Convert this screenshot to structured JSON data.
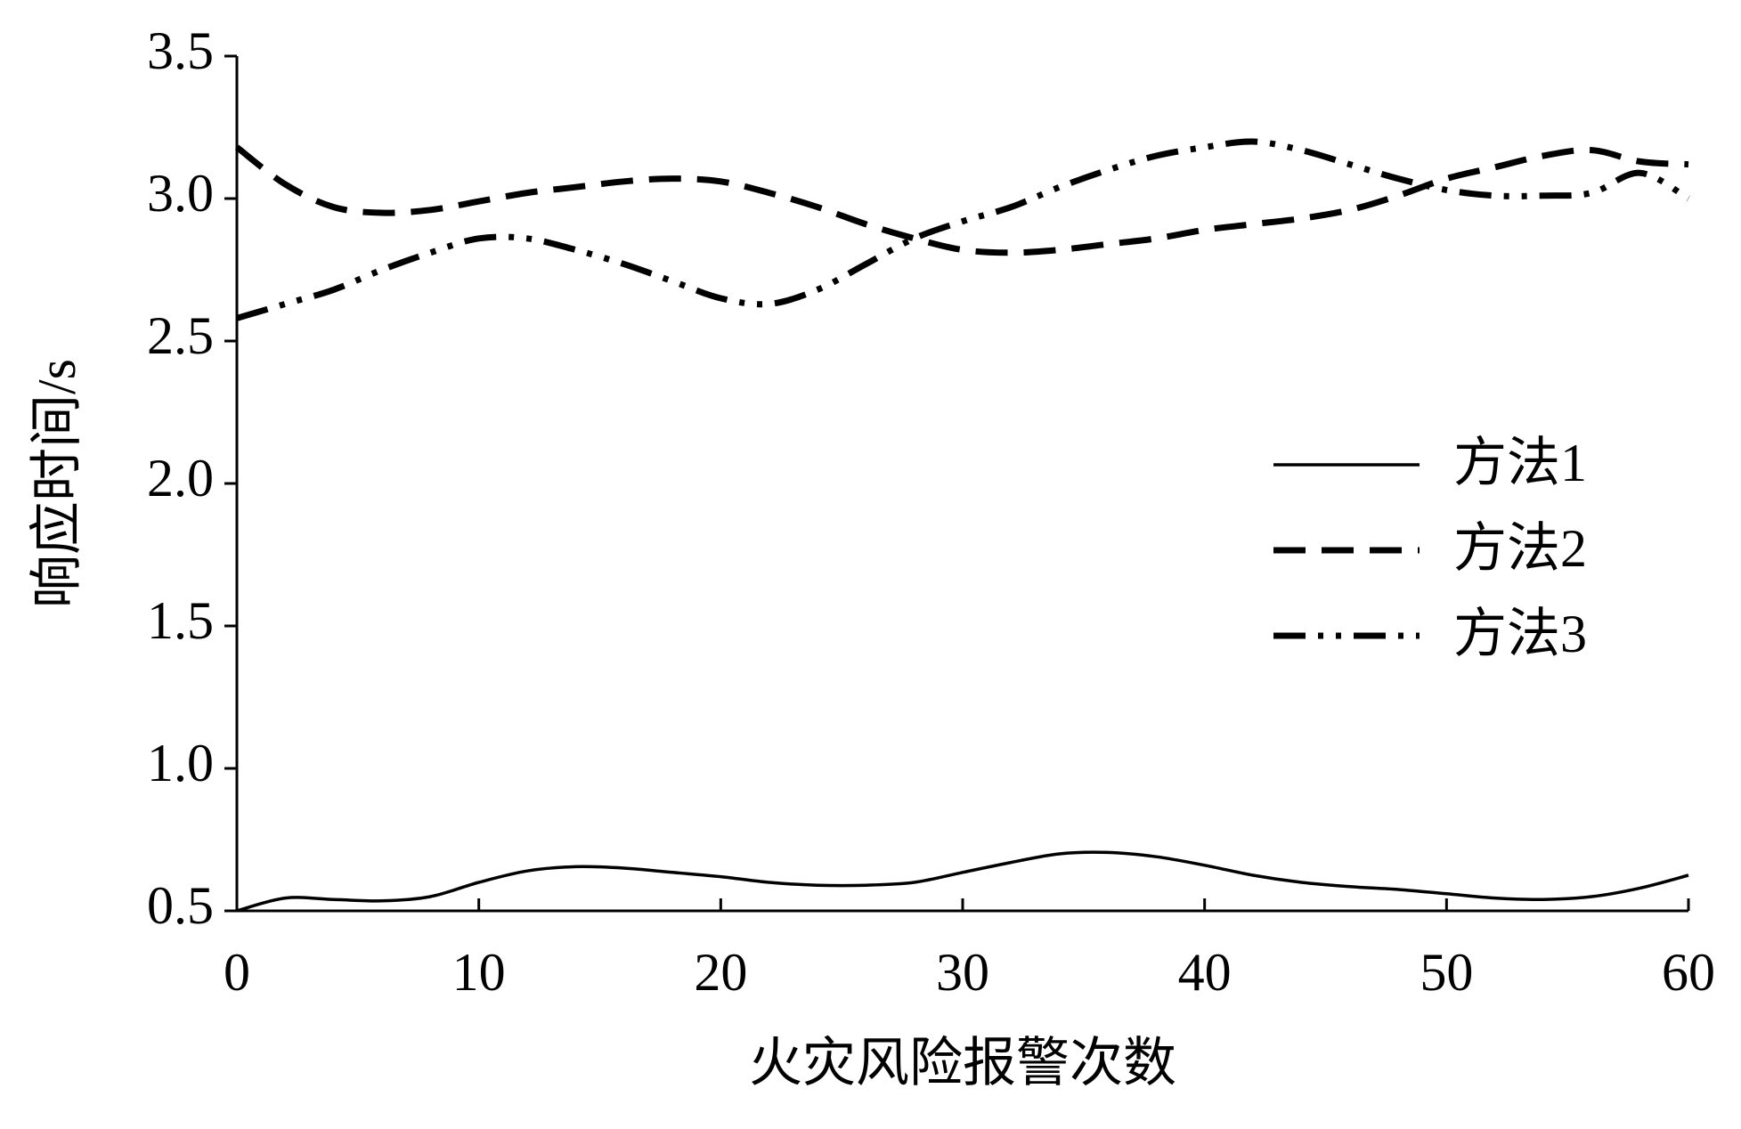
{
  "chart_data": {
    "type": "line",
    "x_label": "火灾风险报警次数",
    "y_label": "响应时间/s",
    "x": [
      0,
      2,
      4,
      6,
      8,
      10,
      12,
      14,
      16,
      18,
      20,
      22,
      24,
      26,
      28,
      30,
      32,
      34,
      36,
      38,
      40,
      42,
      44,
      46,
      48,
      50,
      52,
      54,
      56,
      58,
      60
    ],
    "series": [
      {
        "name": "方法1",
        "color": "#000000",
        "dash": "solid",
        "values": [
          0.5,
          0.545,
          0.54,
          0.535,
          0.55,
          0.6,
          0.64,
          0.655,
          0.65,
          0.635,
          0.62,
          0.6,
          0.59,
          0.59,
          0.6,
          0.635,
          0.67,
          0.7,
          0.705,
          0.69,
          0.66,
          0.625,
          0.6,
          0.585,
          0.575,
          0.56,
          0.545,
          0.54,
          0.55,
          0.58,
          0.625
        ]
      },
      {
        "name": "方法2",
        "color": "#000000",
        "dash": "dashed",
        "values": [
          3.18,
          3.05,
          2.97,
          2.95,
          2.96,
          2.99,
          3.02,
          3.04,
          3.06,
          3.07,
          3.06,
          3.02,
          2.97,
          2.91,
          2.86,
          2.82,
          2.81,
          2.82,
          2.84,
          2.86,
          2.89,
          2.91,
          2.93,
          2.96,
          3.01,
          3.07,
          3.11,
          3.15,
          3.17,
          3.13,
          3.12
        ]
      },
      {
        "name": "方法3",
        "color": "#000000",
        "dash": "dash-dot-dot",
        "values": [
          2.58,
          2.63,
          2.68,
          2.75,
          2.81,
          2.86,
          2.86,
          2.82,
          2.77,
          2.71,
          2.65,
          2.63,
          2.68,
          2.77,
          2.86,
          2.92,
          2.97,
          3.04,
          3.1,
          3.15,
          3.18,
          3.2,
          3.17,
          3.12,
          3.07,
          3.03,
          3.01,
          3.01,
          3.02,
          3.09,
          3.0
        ]
      }
    ],
    "xlim": [
      0,
      60
    ],
    "xticks": [
      0,
      10,
      20,
      30,
      40,
      50,
      60
    ],
    "ylim": [
      0.5,
      3.5
    ],
    "yticks": [
      0.5,
      {
        "value": 1.0,
        "label": "1.0"
      },
      1.5,
      {
        "value": 2.0,
        "label": "2.0"
      },
      2.5,
      {
        "value": 3.0,
        "label": "3.0"
      },
      3.5
    ],
    "grid": false,
    "legend": "center-right"
  }
}
